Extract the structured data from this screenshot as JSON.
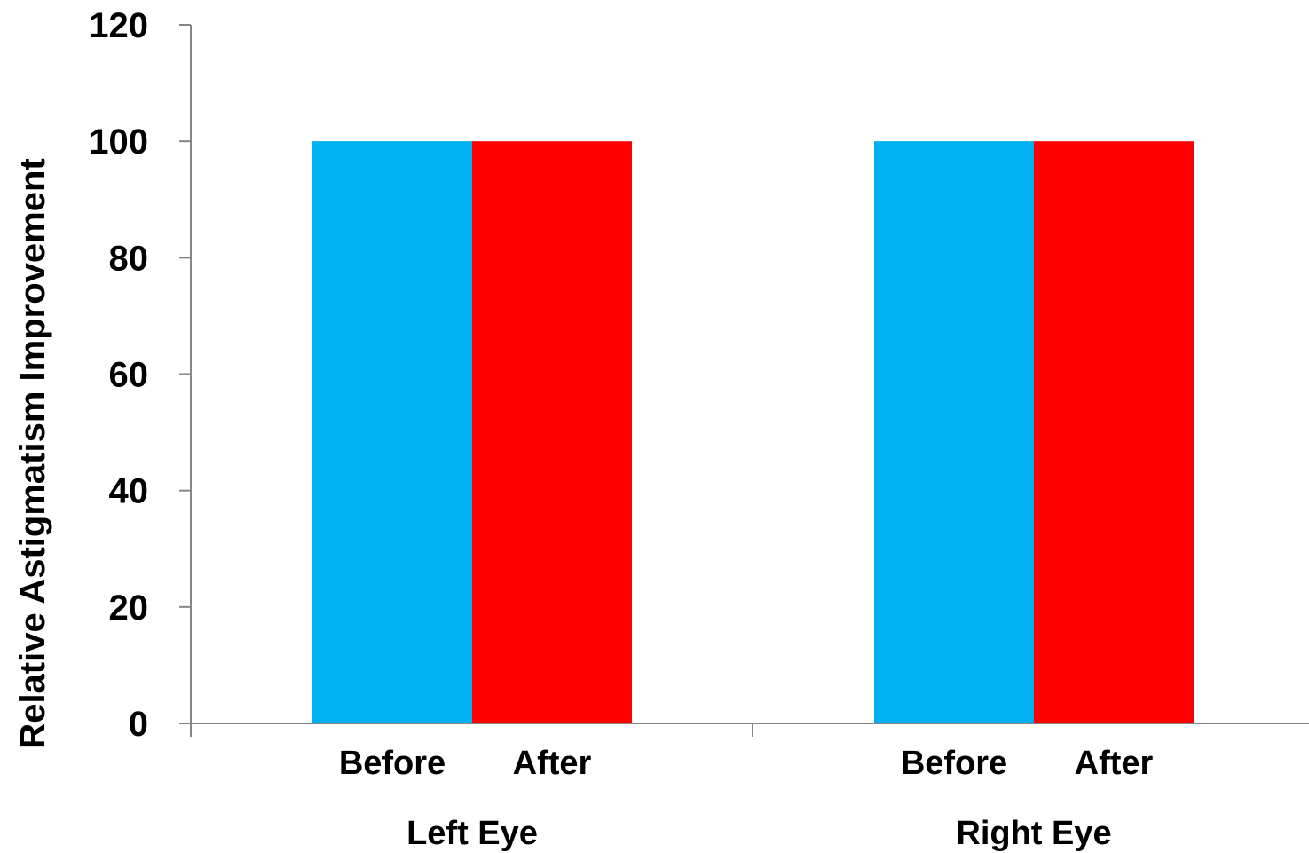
{
  "chart_data": {
    "type": "bar",
    "title": "",
    "ylabel": "Relative Astigmatism Improvement",
    "xlabel": "",
    "ylim": [
      0,
      120
    ],
    "yticks": [
      0,
      20,
      40,
      60,
      80,
      100,
      120
    ],
    "ytick_labels": [
      "0",
      "20",
      "40",
      "60",
      "80",
      "100",
      "120"
    ],
    "grid": false,
    "legend": false,
    "groups": [
      {
        "label": "Left Eye",
        "bars": [
          {
            "label": "Before",
            "value": 100,
            "color": "#00B0F0"
          },
          {
            "label": "After",
            "value": 100,
            "color": "#FF0000"
          }
        ]
      },
      {
        "label": "Right Eye",
        "bars": [
          {
            "label": "Before",
            "value": 100,
            "color": "#00B0F0"
          },
          {
            "label": "After",
            "value": 100,
            "color": "#FF0000"
          }
        ]
      }
    ]
  }
}
